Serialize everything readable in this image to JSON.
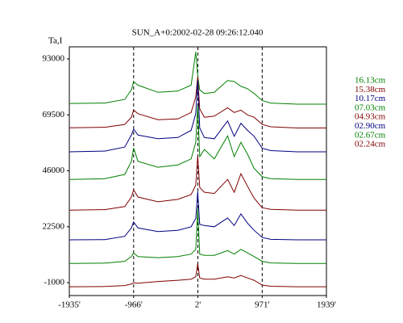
{
  "chart_data": {
    "type": "line",
    "title": "SUN_A+0:2002-02-28 09:26:12.040",
    "y_label": "Ta,I",
    "x": [
      -1935,
      -1400,
      -1100,
      -1000,
      -966,
      -900,
      -600,
      -300,
      -100,
      -30,
      0,
      30,
      100,
      250,
      450,
      550,
      650,
      750,
      850,
      971,
      1100,
      1500,
      1939
    ],
    "xlim": [
      -1935,
      1939
    ],
    "xticks": [
      {
        "value": -1935,
        "label": "-1935'"
      },
      {
        "value": -966,
        "label": "-966'"
      },
      {
        "value": 2,
        "label": "2'"
      },
      {
        "value": 971,
        "label": "971'"
      },
      {
        "value": 1939,
        "label": "1939'"
      }
    ],
    "dashed_markers": [
      -966,
      2,
      971
    ],
    "ylim": [
      -6400,
      98100
    ],
    "yticks": [
      -1000,
      22500,
      46000,
      69500,
      93000
    ],
    "series": [
      {
        "name": "16.13cm",
        "color": "#008000",
        "values": [
          74300,
          74500,
          76000,
          80000,
          83500,
          82000,
          79000,
          79500,
          82000,
          96000,
          86000,
          80000,
          78500,
          79000,
          84000,
          83500,
          81500,
          80500,
          78500,
          75500,
          74500,
          74000,
          74000
        ]
      },
      {
        "name": "15.38cm",
        "color": "#800000",
        "values": [
          64100,
          64300,
          65500,
          68500,
          71500,
          70000,
          67500,
          67800,
          70500,
          77000,
          85500,
          72000,
          68500,
          69000,
          72500,
          70500,
          71500,
          69500,
          68500,
          65500,
          64500,
          64000,
          64000
        ]
      },
      {
        "name": "10.17cm",
        "color": "#000080",
        "values": [
          54000,
          54300,
          56000,
          61000,
          63500,
          61000,
          59500,
          60000,
          63000,
          70000,
          84000,
          64000,
          60000,
          59500,
          67000,
          60500,
          66000,
          63000,
          60500,
          55500,
          54500,
          54000,
          54000
        ]
      },
      {
        "name": "07.03cm",
        "color": "#008000",
        "values": [
          42400,
          42700,
          44500,
          50000,
          55600,
          50000,
          47500,
          48500,
          51000,
          58000,
          73400,
          52000,
          55000,
          51000,
          60700,
          52000,
          58000,
          53000,
          47000,
          43500,
          42700,
          42400,
          42400
        ]
      },
      {
        "name": "04.93cm",
        "color": "#800000",
        "values": [
          29500,
          29700,
          31000,
          35000,
          38000,
          35000,
          33000,
          34000,
          36000,
          40000,
          52300,
          39000,
          37000,
          36500,
          42400,
          37000,
          44800,
          39500,
          34500,
          30500,
          29800,
          29500,
          29500
        ]
      },
      {
        "name": "02.90cm",
        "color": "#000080",
        "values": [
          17000,
          17100,
          18500,
          22000,
          24500,
          22000,
          20500,
          21000,
          22500,
          26000,
          37300,
          23500,
          23000,
          22500,
          26200,
          23000,
          27900,
          24000,
          21000,
          18000,
          17200,
          17000,
          17000
        ]
      },
      {
        "name": "02.67cm",
        "color": "#008000",
        "values": [
          7100,
          7200,
          8000,
          10000,
          11500,
          10000,
          9500,
          10000,
          11000,
          13000,
          30200,
          11000,
          10500,
          10500,
          12500,
          11000,
          13000,
          11500,
          10000,
          8000,
          7300,
          7100,
          7100
        ]
      },
      {
        "name": "02.24cm",
        "color": "#800000",
        "values": [
          -2700,
          -2600,
          -2200,
          -1500,
          -1000,
          -1200,
          -500,
          0,
          500,
          1500,
          7100,
          1000,
          500,
          500,
          1500,
          1000,
          2000,
          1000,
          0,
          -2000,
          -2500,
          -2700,
          -2700
        ]
      }
    ]
  }
}
